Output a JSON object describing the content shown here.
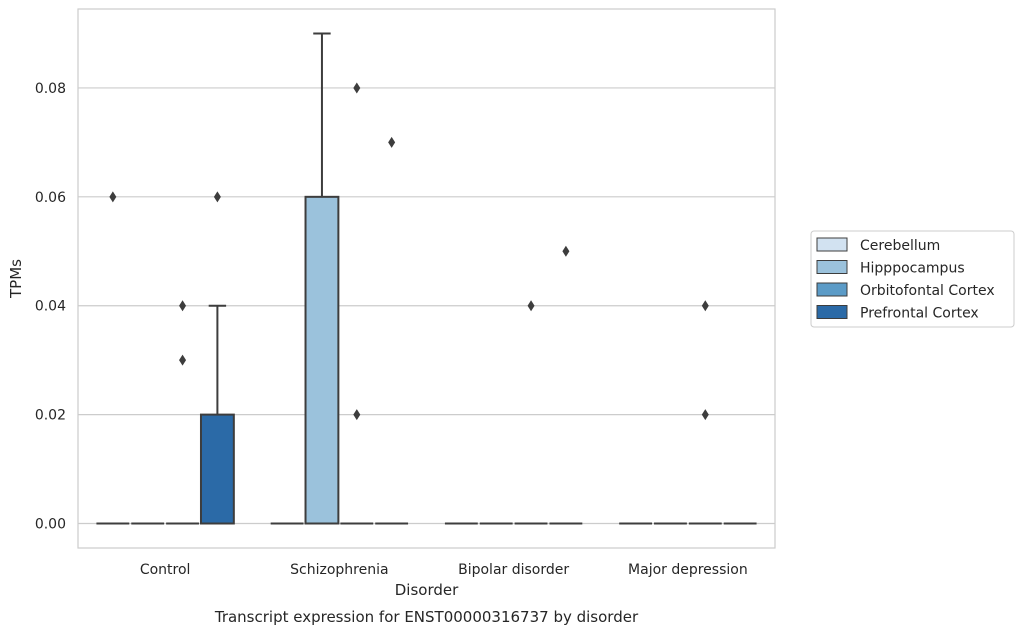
{
  "chart_data": {
    "type": "box",
    "title": "",
    "caption": "Transcript expression for ENST00000316737 by disorder",
    "xlabel": "Disorder",
    "ylabel": "TPMs",
    "ylim": [
      -0.0045,
      0.0945
    ],
    "yticks": [
      "0.00",
      "0.02",
      "0.04",
      "0.06",
      "0.08"
    ],
    "grid": "horizontal",
    "legend_position": "right",
    "categories": [
      "Control",
      "Schizophrenia",
      "Bipolar disorder",
      "Major depression"
    ],
    "series": [
      {
        "name": "Cerebellum",
        "color": "#d2e2f1",
        "boxes": [
          {
            "q1": 0,
            "median": 0,
            "q3": 0,
            "whisker_low": 0,
            "whisker_high": 0,
            "outliers": [
              0.06
            ]
          },
          {
            "q1": 0,
            "median": 0,
            "q3": 0,
            "whisker_low": 0,
            "whisker_high": 0,
            "outliers": []
          },
          {
            "q1": 0,
            "median": 0,
            "q3": 0,
            "whisker_low": 0,
            "whisker_high": 0,
            "outliers": []
          },
          {
            "q1": 0,
            "median": 0,
            "q3": 0,
            "whisker_low": 0,
            "whisker_high": 0,
            "outliers": []
          }
        ]
      },
      {
        "name": "Hipppocampus",
        "color": "#9bc2dc",
        "boxes": [
          {
            "q1": 0,
            "median": 0,
            "q3": 0,
            "whisker_low": 0,
            "whisker_high": 0,
            "outliers": []
          },
          {
            "q1": 0,
            "median": 0,
            "q3": 0.06,
            "whisker_low": 0,
            "whisker_high": 0.09,
            "outliers": []
          },
          {
            "q1": 0,
            "median": 0,
            "q3": 0,
            "whisker_low": 0,
            "whisker_high": 0,
            "outliers": []
          },
          {
            "q1": 0,
            "median": 0,
            "q3": 0,
            "whisker_low": 0,
            "whisker_high": 0,
            "outliers": []
          }
        ]
      },
      {
        "name": "Orbitofontal Cortex",
        "color": "#5b9bc7",
        "boxes": [
          {
            "q1": 0,
            "median": 0,
            "q3": 0,
            "whisker_low": 0,
            "whisker_high": 0,
            "outliers": [
              0.03,
              0.04
            ]
          },
          {
            "q1": 0,
            "median": 0,
            "q3": 0,
            "whisker_low": 0,
            "whisker_high": 0,
            "outliers": [
              0.02,
              0.08
            ]
          },
          {
            "q1": 0,
            "median": 0,
            "q3": 0,
            "whisker_low": 0,
            "whisker_high": 0,
            "outliers": [
              0.04
            ]
          },
          {
            "q1": 0,
            "median": 0,
            "q3": 0,
            "whisker_low": 0,
            "whisker_high": 0,
            "outliers": [
              0.02,
              0.04
            ]
          }
        ]
      },
      {
        "name": "Prefrontal Cortex",
        "color": "#2b6aa7",
        "boxes": [
          {
            "q1": 0,
            "median": 0,
            "q3": 0.02,
            "whisker_low": 0,
            "whisker_high": 0.04,
            "outliers": [
              0.06
            ]
          },
          {
            "q1": 0,
            "median": 0,
            "q3": 0,
            "whisker_low": 0,
            "whisker_high": 0,
            "outliers": [
              0.07
            ]
          },
          {
            "q1": 0,
            "median": 0,
            "q3": 0,
            "whisker_low": 0,
            "whisker_high": 0,
            "outliers": [
              0.05
            ]
          },
          {
            "q1": 0,
            "median": 0,
            "q3": 0,
            "whisker_low": 0,
            "whisker_high": 0,
            "outliers": []
          }
        ]
      }
    ]
  }
}
